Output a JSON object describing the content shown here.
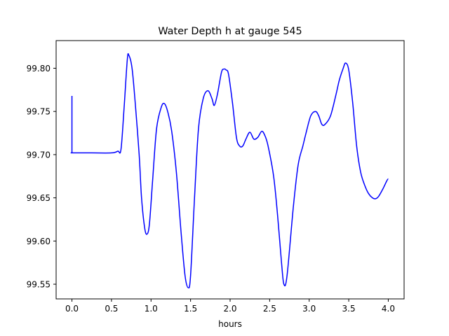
{
  "chart_data": {
    "type": "line",
    "title": "Water Depth h at gauge 545",
    "xlabel": "hours",
    "ylabel": "",
    "xlim": [
      -0.2,
      4.2
    ],
    "ylim": [
      99.533,
      99.832
    ],
    "xticks": [
      0.0,
      0.5,
      1.0,
      1.5,
      2.0,
      2.5,
      3.0,
      3.5,
      4.0
    ],
    "xtick_labels": [
      "0.0",
      "0.5",
      "1.0",
      "1.5",
      "2.0",
      "2.5",
      "3.0",
      "3.5",
      "4.0"
    ],
    "yticks": [
      99.55,
      99.6,
      99.65,
      99.7,
      99.75,
      99.8
    ],
    "ytick_labels": [
      "99.55",
      "99.60",
      "99.65",
      "99.70",
      "99.75",
      "99.80"
    ],
    "grid": false,
    "legend": "none",
    "series": [
      {
        "color": "#0000ff",
        "x": [
          0.0,
          0.0,
          0.01,
          0.25,
          0.5,
          0.58,
          0.62,
          0.66,
          0.7,
          0.72,
          0.76,
          0.8,
          0.85,
          0.88,
          0.92,
          0.95,
          0.98,
          1.02,
          1.07,
          1.13,
          1.17,
          1.21,
          1.26,
          1.32,
          1.38,
          1.43,
          1.47,
          1.5,
          1.55,
          1.6,
          1.66,
          1.72,
          1.77,
          1.8,
          1.84,
          1.89,
          1.92,
          1.95,
          1.98,
          2.03,
          2.08,
          2.12,
          2.16,
          2.2,
          2.25,
          2.3,
          2.35,
          2.4,
          2.44,
          2.48,
          2.55,
          2.6,
          2.65,
          2.68,
          2.72,
          2.8,
          2.86,
          2.92,
          2.96,
          3.02,
          3.08,
          3.12,
          3.16,
          3.2,
          3.27,
          3.34,
          3.38,
          3.43,
          3.46,
          3.5,
          3.55,
          3.6,
          3.65,
          3.7,
          3.75,
          3.8,
          3.84,
          3.88,
          3.93,
          4.0
        ],
        "y": [
          99.768,
          99.702,
          99.702,
          99.702,
          99.702,
          99.704,
          99.706,
          99.755,
          99.81,
          99.815,
          99.8,
          99.76,
          99.7,
          99.65,
          99.615,
          99.608,
          99.62,
          99.67,
          99.73,
          99.755,
          99.759,
          99.75,
          99.728,
          99.68,
          99.61,
          99.56,
          99.546,
          99.56,
          99.65,
          99.73,
          99.765,
          99.774,
          99.765,
          99.757,
          99.77,
          99.795,
          99.799,
          99.798,
          99.793,
          99.76,
          99.72,
          99.71,
          99.71,
          99.718,
          99.726,
          99.718,
          99.72,
          99.727,
          99.722,
          99.71,
          99.675,
          99.63,
          99.575,
          99.55,
          99.56,
          99.64,
          99.688,
          99.71,
          99.725,
          99.745,
          99.75,
          99.745,
          99.735,
          99.735,
          99.745,
          99.77,
          99.786,
          99.8,
          99.806,
          99.798,
          99.76,
          99.71,
          99.68,
          99.665,
          99.655,
          99.65,
          99.649,
          99.652,
          99.66,
          99.672
        ]
      }
    ]
  }
}
